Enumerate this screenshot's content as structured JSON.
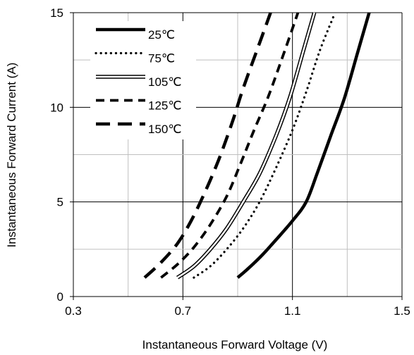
{
  "chart_data": {
    "type": "line",
    "xlabel": "Instantaneous Forward Voltage (V)",
    "ylabel": "Instantaneous Forward Current (A)",
    "xlim": [
      0.3,
      1.5
    ],
    "ylim": [
      0,
      15
    ],
    "x_ticks": [
      "0.3",
      "0.7",
      "1.1",
      "1.5"
    ],
    "y_ticks": [
      "0",
      "5",
      "10",
      "15"
    ],
    "grid": true,
    "legend_position": "top-left",
    "series": [
      {
        "name": "25℃",
        "style": "thick-solid",
        "points": [
          [
            0.9,
            1.0
          ],
          [
            0.94,
            1.5
          ],
          [
            0.99,
            2.2
          ],
          [
            1.04,
            3.0
          ],
          [
            1.1,
            4.0
          ],
          [
            1.15,
            5.0
          ],
          [
            1.19,
            6.5
          ],
          [
            1.24,
            8.5
          ],
          [
            1.29,
            10.5
          ],
          [
            1.34,
            13.0
          ],
          [
            1.38,
            15.0
          ]
        ]
      },
      {
        "name": "75℃",
        "style": "dotted",
        "points": [
          [
            0.74,
            1.0
          ],
          [
            0.8,
            1.6
          ],
          [
            0.86,
            2.5
          ],
          [
            0.92,
            3.6
          ],
          [
            0.98,
            5.0
          ],
          [
            1.04,
            6.8
          ],
          [
            1.1,
            8.8
          ],
          [
            1.15,
            10.8
          ],
          [
            1.2,
            13.0
          ],
          [
            1.25,
            14.8
          ]
        ]
      },
      {
        "name": "105℃",
        "style": "double",
        "points": [
          [
            0.68,
            1.0
          ],
          [
            0.74,
            1.6
          ],
          [
            0.8,
            2.5
          ],
          [
            0.86,
            3.6
          ],
          [
            0.92,
            5.0
          ],
          [
            0.98,
            6.5
          ],
          [
            1.04,
            8.5
          ],
          [
            1.09,
            10.5
          ],
          [
            1.14,
            13.0
          ],
          [
            1.18,
            15.0
          ]
        ]
      },
      {
        "name": "125℃",
        "style": "dashed",
        "points": [
          [
            0.62,
            1.0
          ],
          [
            0.68,
            1.7
          ],
          [
            0.74,
            2.6
          ],
          [
            0.8,
            3.8
          ],
          [
            0.86,
            5.3
          ],
          [
            0.91,
            7.0
          ],
          [
            0.96,
            8.8
          ],
          [
            1.01,
            10.5
          ],
          [
            1.06,
            12.5
          ],
          [
            1.12,
            15.0
          ]
        ]
      },
      {
        "name": "150℃",
        "style": "long-dash",
        "points": [
          [
            0.56,
            1.0
          ],
          [
            0.62,
            1.8
          ],
          [
            0.68,
            2.8
          ],
          [
            0.73,
            4.0
          ],
          [
            0.78,
            5.5
          ],
          [
            0.83,
            7.2
          ],
          [
            0.88,
            9.2
          ],
          [
            0.92,
            11.0
          ],
          [
            0.97,
            13.0
          ],
          [
            1.02,
            15.0
          ]
        ]
      }
    ]
  }
}
